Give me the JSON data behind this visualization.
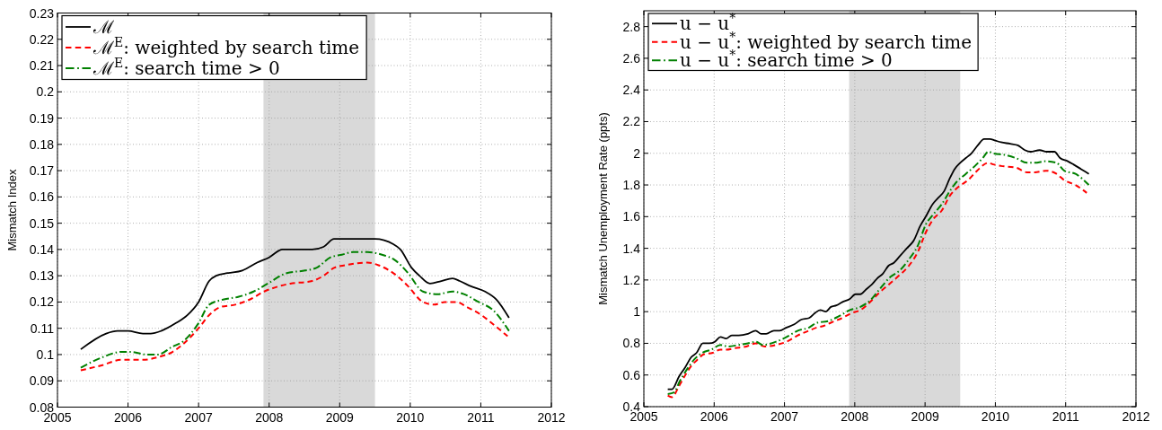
{
  "chart_data": [
    {
      "type": "line",
      "ylabel": "Mismatch Index",
      "xlim": [
        2005,
        2012
      ],
      "xticks": [
        2005,
        2006,
        2007,
        2008,
        2009,
        2010,
        2011,
        2012
      ],
      "ylim": [
        0.08,
        0.23
      ],
      "yticks": [
        0.08,
        0.09,
        0.1,
        0.11,
        0.12,
        0.13,
        0.14,
        0.15,
        0.16,
        0.17,
        0.18,
        0.19,
        0.2,
        0.21,
        0.22,
        0.23
      ],
      "grid": true,
      "legend": "top left",
      "bands": [
        {
          "axis": "x",
          "from": 2007.92,
          "to": 2009.5,
          "color": "#d9d9d9"
        }
      ],
      "series": [
        {
          "name": "ℳ",
          "color": "#000000",
          "line_style": "solid",
          "x": [
            2005.33,
            2005.69,
            2005.85,
            2006.0,
            2006.21,
            2006.32,
            2006.47,
            2006.68,
            2006.84,
            2007.0,
            2007.15,
            2007.25,
            2007.41,
            2007.62,
            2007.83,
            2008.0,
            2008.19,
            2008.35,
            2008.61,
            2008.77,
            2008.92,
            2009.03,
            2009.19,
            2009.34,
            2009.5,
            2009.76,
            2009.86,
            2010.02,
            2010.13,
            2010.28,
            2010.44,
            2010.6,
            2010.7,
            2010.86,
            2011.06,
            2011.22,
            2011.4
          ],
          "values": [
            0.102,
            0.108,
            0.109,
            0.109,
            0.108,
            0.108,
            0.109,
            0.112,
            0.115,
            0.12,
            0.128,
            0.13,
            0.131,
            0.132,
            0.135,
            0.137,
            0.14,
            0.14,
            0.14,
            0.141,
            0.144,
            0.144,
            0.144,
            0.144,
            0.144,
            0.142,
            0.14,
            0.133,
            0.13,
            0.127,
            0.128,
            0.129,
            0.128,
            0.126,
            0.124,
            0.121,
            0.114
          ]
        },
        {
          "name": "ℳ$^{E}$: weighted by search time",
          "color": "#ff0000",
          "line_style": "dashed",
          "x": [
            2005.33,
            2005.64,
            2005.9,
            2006.21,
            2006.42,
            2006.63,
            2006.78,
            2007.0,
            2007.15,
            2007.3,
            2007.52,
            2007.73,
            2007.93,
            2008.14,
            2008.3,
            2008.61,
            2008.77,
            2008.92,
            2009.08,
            2009.39,
            2009.55,
            2009.81,
            2009.97,
            2010.18,
            2010.34,
            2010.49,
            2010.65,
            2010.81,
            2011.01,
            2011.2,
            2011.38
          ],
          "values": [
            0.094,
            0.096,
            0.098,
            0.098,
            0.099,
            0.101,
            0.104,
            0.11,
            0.115,
            0.118,
            0.119,
            0.121,
            0.124,
            0.126,
            0.127,
            0.128,
            0.13,
            0.133,
            0.134,
            0.135,
            0.134,
            0.13,
            0.126,
            0.12,
            0.119,
            0.12,
            0.12,
            0.118,
            0.115,
            0.111,
            0.107
          ]
        },
        {
          "name": "ℳ$^{E}$: search time > 0",
          "color": "#008000",
          "line_style": "dashdot",
          "x": [
            2005.33,
            2005.64,
            2005.9,
            2006.05,
            2006.26,
            2006.42,
            2006.63,
            2006.78,
            2007.0,
            2007.15,
            2007.36,
            2007.57,
            2007.78,
            2007.98,
            2008.25,
            2008.51,
            2008.67,
            2008.87,
            2009.03,
            2009.19,
            2009.39,
            2009.6,
            2009.78,
            2009.97,
            2010.18,
            2010.39,
            2010.6,
            2010.76,
            2010.97,
            2011.17,
            2011.4
          ],
          "values": [
            0.095,
            0.099,
            0.101,
            0.101,
            0.1,
            0.1,
            0.103,
            0.105,
            0.112,
            0.119,
            0.121,
            0.122,
            0.124,
            0.127,
            0.131,
            0.132,
            0.133,
            0.137,
            0.138,
            0.139,
            0.139,
            0.138,
            0.136,
            0.131,
            0.124,
            0.123,
            0.124,
            0.123,
            0.12,
            0.117,
            0.109
          ]
        }
      ]
    },
    {
      "type": "line",
      "ylabel": "Mismatch Unemployment Rate (ppts)",
      "xlim": [
        2005,
        2012
      ],
      "xticks": [
        2005,
        2006,
        2007,
        2008,
        2009,
        2010,
        2011,
        2012
      ],
      "ylim": [
        0.4,
        2.9
      ],
      "yticks": [
        0.4,
        0.6,
        0.8,
        1,
        1.2,
        1.4,
        1.6,
        1.8,
        2,
        2.2,
        2.4,
        2.6,
        2.8
      ],
      "grid": true,
      "legend": "top left",
      "bands": [
        {
          "axis": "x",
          "from": 2007.92,
          "to": 2009.5,
          "color": "#d9d9d9"
        }
      ],
      "series": [
        {
          "name": "u − u$^{*}$",
          "color": "#000000",
          "line_style": "solid",
          "x": [
            2005.34,
            2005.4,
            2005.5,
            2005.59,
            2005.67,
            2005.75,
            2005.84,
            2005.93,
            2006.01,
            2006.09,
            2006.17,
            2006.25,
            2006.35,
            2006.48,
            2006.59,
            2006.67,
            2006.74,
            2006.85,
            2006.93,
            2007.03,
            2007.14,
            2007.24,
            2007.35,
            2007.43,
            2007.51,
            2007.59,
            2007.66,
            2007.74,
            2007.82,
            2007.93,
            2008.01,
            2008.08,
            2008.16,
            2008.24,
            2008.32,
            2008.4,
            2008.48,
            2008.56,
            2008.64,
            2008.74,
            2008.84,
            2008.93,
            2009.01,
            2009.11,
            2009.19,
            2009.27,
            2009.35,
            2009.42,
            2009.5,
            2009.58,
            2009.66,
            2009.75,
            2009.84,
            2009.92,
            2010.0,
            2010.08,
            2010.21,
            2010.32,
            2010.42,
            2010.5,
            2010.63,
            2010.73,
            2010.84,
            2010.92,
            2011.03,
            2011.11,
            2011.22,
            2011.33
          ],
          "values": [
            0.51,
            0.51,
            0.59,
            0.65,
            0.71,
            0.74,
            0.8,
            0.8,
            0.81,
            0.84,
            0.83,
            0.85,
            0.85,
            0.86,
            0.88,
            0.86,
            0.86,
            0.88,
            0.88,
            0.9,
            0.92,
            0.95,
            0.96,
            0.99,
            1.01,
            1.0,
            1.03,
            1.04,
            1.06,
            1.08,
            1.11,
            1.11,
            1.14,
            1.17,
            1.21,
            1.24,
            1.29,
            1.31,
            1.35,
            1.4,
            1.45,
            1.54,
            1.6,
            1.68,
            1.72,
            1.76,
            1.84,
            1.9,
            1.94,
            1.97,
            2.0,
            2.05,
            2.09,
            2.09,
            2.08,
            2.07,
            2.06,
            2.05,
            2.02,
            2.01,
            2.02,
            2.01,
            2.01,
            1.97,
            1.95,
            1.93,
            1.9,
            1.87
          ]
        },
        {
          "name": "u − u$^{*}$: weighted by search time",
          "color": "#ff0000",
          "line_style": "dashed",
          "x": [
            2005.34,
            2005.4,
            2005.5,
            2005.59,
            2005.68,
            2005.77,
            2005.85,
            2005.98,
            2006.09,
            2006.17,
            2006.3,
            2006.46,
            2006.59,
            2006.72,
            2006.88,
            2007.03,
            2007.19,
            2007.35,
            2007.46,
            2007.56,
            2007.66,
            2007.82,
            2007.95,
            2008.08,
            2008.24,
            2008.35,
            2008.48,
            2008.61,
            2008.77,
            2008.9,
            2009.01,
            2009.11,
            2009.24,
            2009.35,
            2009.48,
            2009.61,
            2009.74,
            2009.9,
            2009.97,
            2010.08,
            2010.29,
            2010.45,
            2010.56,
            2010.72,
            2010.87,
            2010.98,
            2011.14,
            2011.3
          ],
          "values": [
            0.47,
            0.46,
            0.53,
            0.6,
            0.66,
            0.7,
            0.73,
            0.74,
            0.76,
            0.76,
            0.77,
            0.78,
            0.8,
            0.78,
            0.79,
            0.81,
            0.85,
            0.88,
            0.9,
            0.91,
            0.93,
            0.96,
            0.99,
            1.01,
            1.07,
            1.12,
            1.17,
            1.22,
            1.29,
            1.38,
            1.5,
            1.58,
            1.64,
            1.73,
            1.79,
            1.83,
            1.89,
            1.94,
            1.93,
            1.92,
            1.91,
            1.88,
            1.88,
            1.89,
            1.87,
            1.83,
            1.8,
            1.75
          ]
        },
        {
          "name": "u − u$^{*}$: search time > 0",
          "color": "#008000",
          "line_style": "dashdot",
          "x": [
            2005.34,
            2005.43,
            2005.51,
            2005.62,
            2005.72,
            2005.83,
            2005.96,
            2006.09,
            2006.2,
            2006.35,
            2006.48,
            2006.59,
            2006.69,
            2006.88,
            2007.03,
            2007.19,
            2007.35,
            2007.46,
            2007.62,
            2007.77,
            2007.93,
            2008.08,
            2008.24,
            2008.35,
            2008.51,
            2008.64,
            2008.77,
            2008.9,
            2009.01,
            2009.11,
            2009.24,
            2009.35,
            2009.45,
            2009.58,
            2009.71,
            2009.82,
            2009.9,
            2009.97,
            2010.13,
            2010.29,
            2010.45,
            2010.56,
            2010.72,
            2010.87,
            2010.98,
            2011.14,
            2011.33
          ],
          "values": [
            0.48,
            0.49,
            0.56,
            0.64,
            0.7,
            0.74,
            0.76,
            0.79,
            0.78,
            0.79,
            0.8,
            0.81,
            0.79,
            0.81,
            0.84,
            0.88,
            0.9,
            0.93,
            0.94,
            0.97,
            1.01,
            1.03,
            1.08,
            1.14,
            1.22,
            1.26,
            1.33,
            1.42,
            1.55,
            1.61,
            1.68,
            1.76,
            1.82,
            1.87,
            1.92,
            1.97,
            2.01,
            2.0,
            1.99,
            1.97,
            1.94,
            1.94,
            1.95,
            1.94,
            1.89,
            1.87,
            1.8
          ]
        }
      ]
    }
  ]
}
